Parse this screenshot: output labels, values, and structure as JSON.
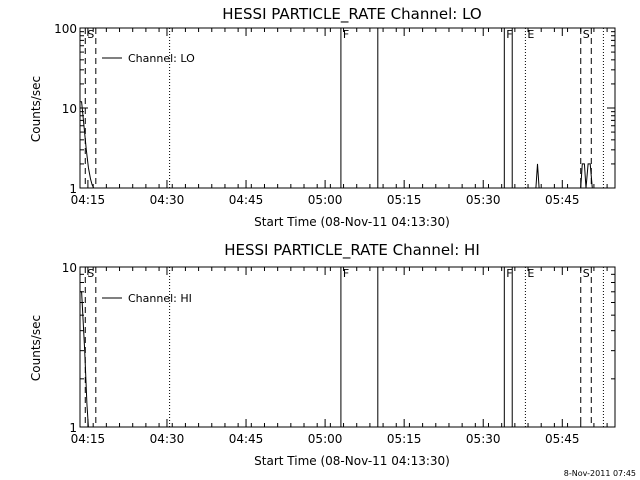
{
  "chart_data": [
    {
      "type": "line",
      "title": "HESSI PARTICLE_RATE Channel: LO",
      "xlabel": "Start Time (08-Nov-11 04:13:30)",
      "ylabel": "Counts/sec",
      "yscale": "log",
      "ylim": [
        1,
        100
      ],
      "xlim_minutes": [
        0,
        101.5
      ],
      "xticks": [
        {
          "label": "04:15",
          "min": 1.5
        },
        {
          "label": "04:30",
          "min": 16.5
        },
        {
          "label": "04:45",
          "min": 31.5
        },
        {
          "label": "05:00",
          "min": 46.5
        },
        {
          "label": "05:15",
          "min": 61.5
        },
        {
          "label": "05:30",
          "min": 76.5
        },
        {
          "label": "05:45",
          "min": 91.5
        }
      ],
      "yticks": [
        {
          "label": "1",
          "value": 1
        },
        {
          "label": "10",
          "value": 10
        },
        {
          "label": "100",
          "value": 100
        }
      ],
      "legend": {
        "entry": "Channel: LO",
        "position": "top-left"
      },
      "series": [
        {
          "name": "Channel: LO",
          "x": [
            0,
            0.3,
            1.2,
            1.6,
            2.0,
            2.3,
            2.6,
            86.5,
            86.8,
            87.1,
            95.0,
            95.3,
            95.7,
            96.0,
            96.4,
            96.8,
            97.2,
            97.6
          ],
          "y": [
            12,
            12,
            3,
            1.8,
            1.3,
            1.1,
            1.0,
            1.0,
            2.0,
            1.0,
            1.0,
            2.0,
            2.0,
            1.0,
            2.0,
            2.0,
            1.0,
            1.0
          ]
        }
      ],
      "vlines": [
        {
          "min": 1.0,
          "style": "dashed",
          "label": "S"
        },
        {
          "min": 3.0,
          "style": "dashed",
          "label": ""
        },
        {
          "min": 17.0,
          "style": "dotted",
          "label": ""
        },
        {
          "min": 49.5,
          "style": "solid",
          "label": "F"
        },
        {
          "min": 56.5,
          "style": "solid",
          "label": ""
        },
        {
          "min": 80.5,
          "style": "solid",
          "label": "F"
        },
        {
          "min": 82.0,
          "style": "solid",
          "label": ""
        },
        {
          "min": 84.5,
          "style": "dotted",
          "label": "E"
        },
        {
          "min": 95.0,
          "style": "dashed",
          "label": "S"
        },
        {
          "min": 97.0,
          "style": "dashed",
          "label": ""
        },
        {
          "min": 99.3,
          "style": "dotted",
          "label": ""
        }
      ]
    },
    {
      "type": "line",
      "title": "HESSI PARTICLE_RATE Channel: HI",
      "xlabel": "Start Time (08-Nov-11 04:13:30)",
      "ylabel": "Counts/sec",
      "yscale": "log",
      "ylim": [
        1,
        10
      ],
      "xlim_minutes": [
        0,
        101.5
      ],
      "xticks": [
        {
          "label": "04:15",
          "min": 1.5
        },
        {
          "label": "04:30",
          "min": 16.5
        },
        {
          "label": "04:45",
          "min": 31.5
        },
        {
          "label": "05:00",
          "min": 46.5
        },
        {
          "label": "05:15",
          "min": 61.5
        },
        {
          "label": "05:30",
          "min": 76.5
        },
        {
          "label": "05:45",
          "min": 91.5
        }
      ],
      "yticks": [
        {
          "label": "1",
          "value": 1
        },
        {
          "label": "10",
          "value": 10
        }
      ],
      "legend": {
        "entry": "Channel: HI",
        "position": "top-left"
      },
      "series": [
        {
          "name": "Channel: HI",
          "x": [
            0,
            0.3,
            0.9,
            1.3,
            1.6
          ],
          "y": [
            7,
            7,
            3,
            1.4,
            1.0
          ]
        }
      ],
      "vlines": [
        {
          "min": 1.0,
          "style": "dashed",
          "label": "S"
        },
        {
          "min": 3.0,
          "style": "dashed",
          "label": ""
        },
        {
          "min": 17.0,
          "style": "dotted",
          "label": ""
        },
        {
          "min": 49.5,
          "style": "solid",
          "label": "F"
        },
        {
          "min": 56.5,
          "style": "solid",
          "label": ""
        },
        {
          "min": 80.5,
          "style": "solid",
          "label": "F"
        },
        {
          "min": 82.0,
          "style": "solid",
          "label": ""
        },
        {
          "min": 84.5,
          "style": "dotted",
          "label": "E"
        },
        {
          "min": 95.0,
          "style": "dashed",
          "label": "S"
        },
        {
          "min": 97.0,
          "style": "dashed",
          "label": ""
        },
        {
          "min": 99.3,
          "style": "dotted",
          "label": ""
        }
      ]
    }
  ],
  "footer": {
    "timestamp": "8-Nov-2011 07:45"
  }
}
